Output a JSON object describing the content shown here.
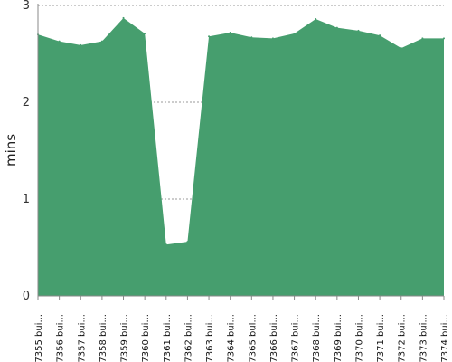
{
  "chart_data": {
    "type": "area",
    "title": "",
    "xlabel": "",
    "ylabel": "mins",
    "ylim": [
      0,
      3
    ],
    "yticks": [
      "0",
      "1",
      "2",
      "3"
    ],
    "grid": true,
    "fill_color": "#469e6e",
    "grid_color": "#777777",
    "axis_color": "#888888",
    "x": [
      "#7355 bui...",
      "#7356 bui...",
      "#7357 bui...",
      "#7358 bui...",
      "#7359 bui...",
      "#7360 bui...",
      "#7361 bui...",
      "#7362 bui...",
      "#7363 bui...",
      "#7364 bui...",
      "#7365 bui...",
      "#7366 bui...",
      "#7367 bui...",
      "#7368 bui...",
      "#7369 bui...",
      "#7370 bui...",
      "#7371 bui...",
      "#7372 bui...",
      "#7373 bui...",
      "#7374 bui..."
    ],
    "series": [
      {
        "values": [
          2.7,
          2.63,
          2.59,
          2.63,
          2.87,
          2.71,
          0.53,
          0.56,
          2.68,
          2.72,
          2.67,
          2.66,
          2.71,
          2.86,
          2.77,
          2.74,
          2.69,
          2.56,
          2.66,
          2.66
        ]
      }
    ]
  }
}
